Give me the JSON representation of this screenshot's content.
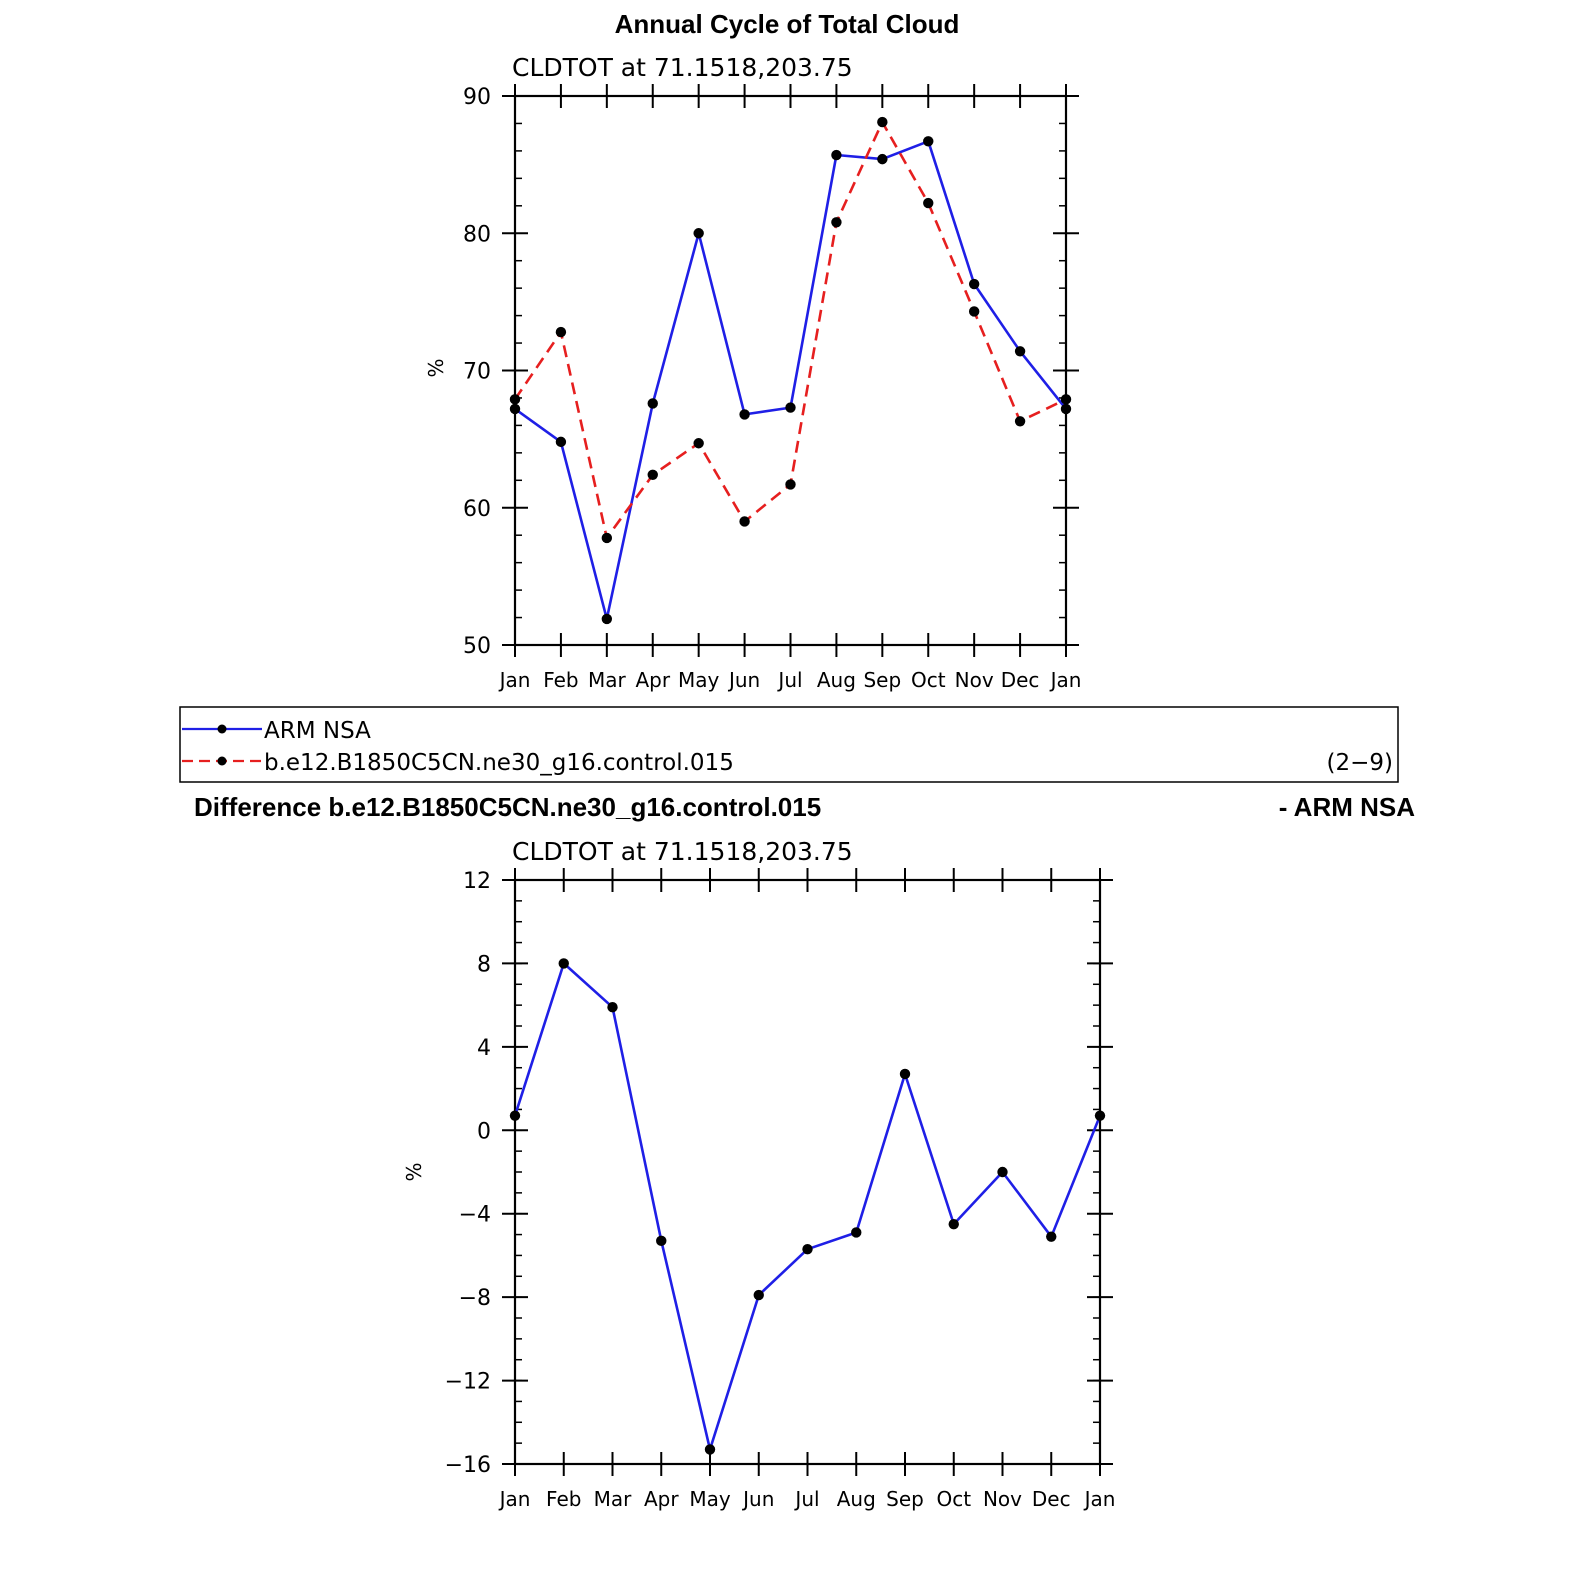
{
  "colors": {
    "arm": "#1f1fe6",
    "model": "#e61f1f",
    "marker": "#000000"
  },
  "top_panel": {
    "title": "Annual Cycle of Total Cloud",
    "subtitle": "CLDTOT at 71.1518,203.75",
    "ylabel": "%"
  },
  "legend": {
    "entries": [
      {
        "label": "ARM NSA",
        "style": "solid",
        "color": "#1f1fe6"
      },
      {
        "label": "b.e12.B1850C5CN.ne30_g16.control.015",
        "style": "dashed",
        "color": "#e61f1f"
      }
    ],
    "note": "(2−9)"
  },
  "bottom_panel": {
    "title_left": "Difference b.e12.B1850C5CN.ne30_g16.control.015",
    "title_right": "- ARM NSA",
    "subtitle": "CLDTOT at 71.1518,203.75",
    "ylabel": "%"
  },
  "chart_data": [
    {
      "type": "line",
      "categories": [
        "Jan",
        "Feb",
        "Mar",
        "Apr",
        "May",
        "Jun",
        "Jul",
        "Aug",
        "Sep",
        "Oct",
        "Nov",
        "Dec",
        "Jan"
      ],
      "ylim": [
        50,
        90
      ],
      "yticks": [
        50,
        60,
        70,
        80,
        90
      ],
      "yminor_step": 2,
      "series": [
        {
          "name": "ARM NSA",
          "style": "solid",
          "color": "#1f1fe6",
          "values": [
            67.2,
            64.8,
            51.9,
            67.6,
            80.0,
            66.8,
            67.3,
            85.7,
            85.4,
            86.7,
            76.3,
            71.4,
            67.2
          ]
        },
        {
          "name": "b.e12.B1850C5CN.ne30_g16.control.015",
          "style": "dashed",
          "color": "#e61f1f",
          "values": [
            67.9,
            72.8,
            57.8,
            62.4,
            64.7,
            59.0,
            61.7,
            80.8,
            88.1,
            82.2,
            74.3,
            66.3,
            67.9
          ]
        }
      ]
    },
    {
      "type": "line",
      "categories": [
        "Jan",
        "Feb",
        "Mar",
        "Apr",
        "May",
        "Jun",
        "Jul",
        "Aug",
        "Sep",
        "Oct",
        "Nov",
        "Dec",
        "Jan"
      ],
      "ylim": [
        -16,
        12
      ],
      "yticks": [
        -16,
        -12,
        -8,
        -4,
        0,
        4,
        8,
        12
      ],
      "ytick_labels": [
        "−16",
        "−12",
        "−8",
        "−4",
        "0",
        "4",
        "8",
        "12"
      ],
      "yminor_step": 1,
      "series": [
        {
          "style": "solid",
          "color": "#1f1fe6",
          "values": [
            0.7,
            8.0,
            5.9,
            -5.3,
            -15.3,
            -7.9,
            -5.7,
            -4.9,
            2.7,
            -4.5,
            -2.0,
            -5.1,
            0.7
          ]
        }
      ]
    }
  ]
}
